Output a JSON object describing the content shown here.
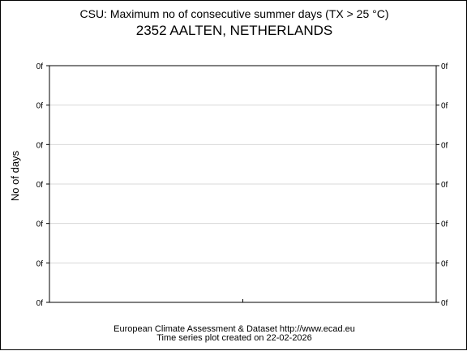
{
  "header": {
    "title": "CSU: Maximum no of consecutive summer days (TX > 25 °C)",
    "subtitle": "2352 AALTEN, NETHERLANDS"
  },
  "chart_data": {
    "type": "line",
    "title": "CSU: Maximum no of consecutive summer days (TX > 25 °C)",
    "subtitle": "2352 AALTEN, NETHERLANDS",
    "xlabel": "",
    "ylabel": "No of days",
    "y_ticks": [
      "0f",
      "0f",
      "0f",
      "0f",
      "0f",
      "0f",
      "0f"
    ],
    "x_ticks": [
      ""
    ],
    "series": [],
    "grid": true
  },
  "footer": {
    "line1": "European Climate Assessment & Dataset  http://www.ecad.eu",
    "line2": "Time series plot created on 22-02-2026"
  },
  "colors": {
    "axis": "#000000",
    "grid": "#d8d8d8",
    "background": "#ffffff"
  }
}
